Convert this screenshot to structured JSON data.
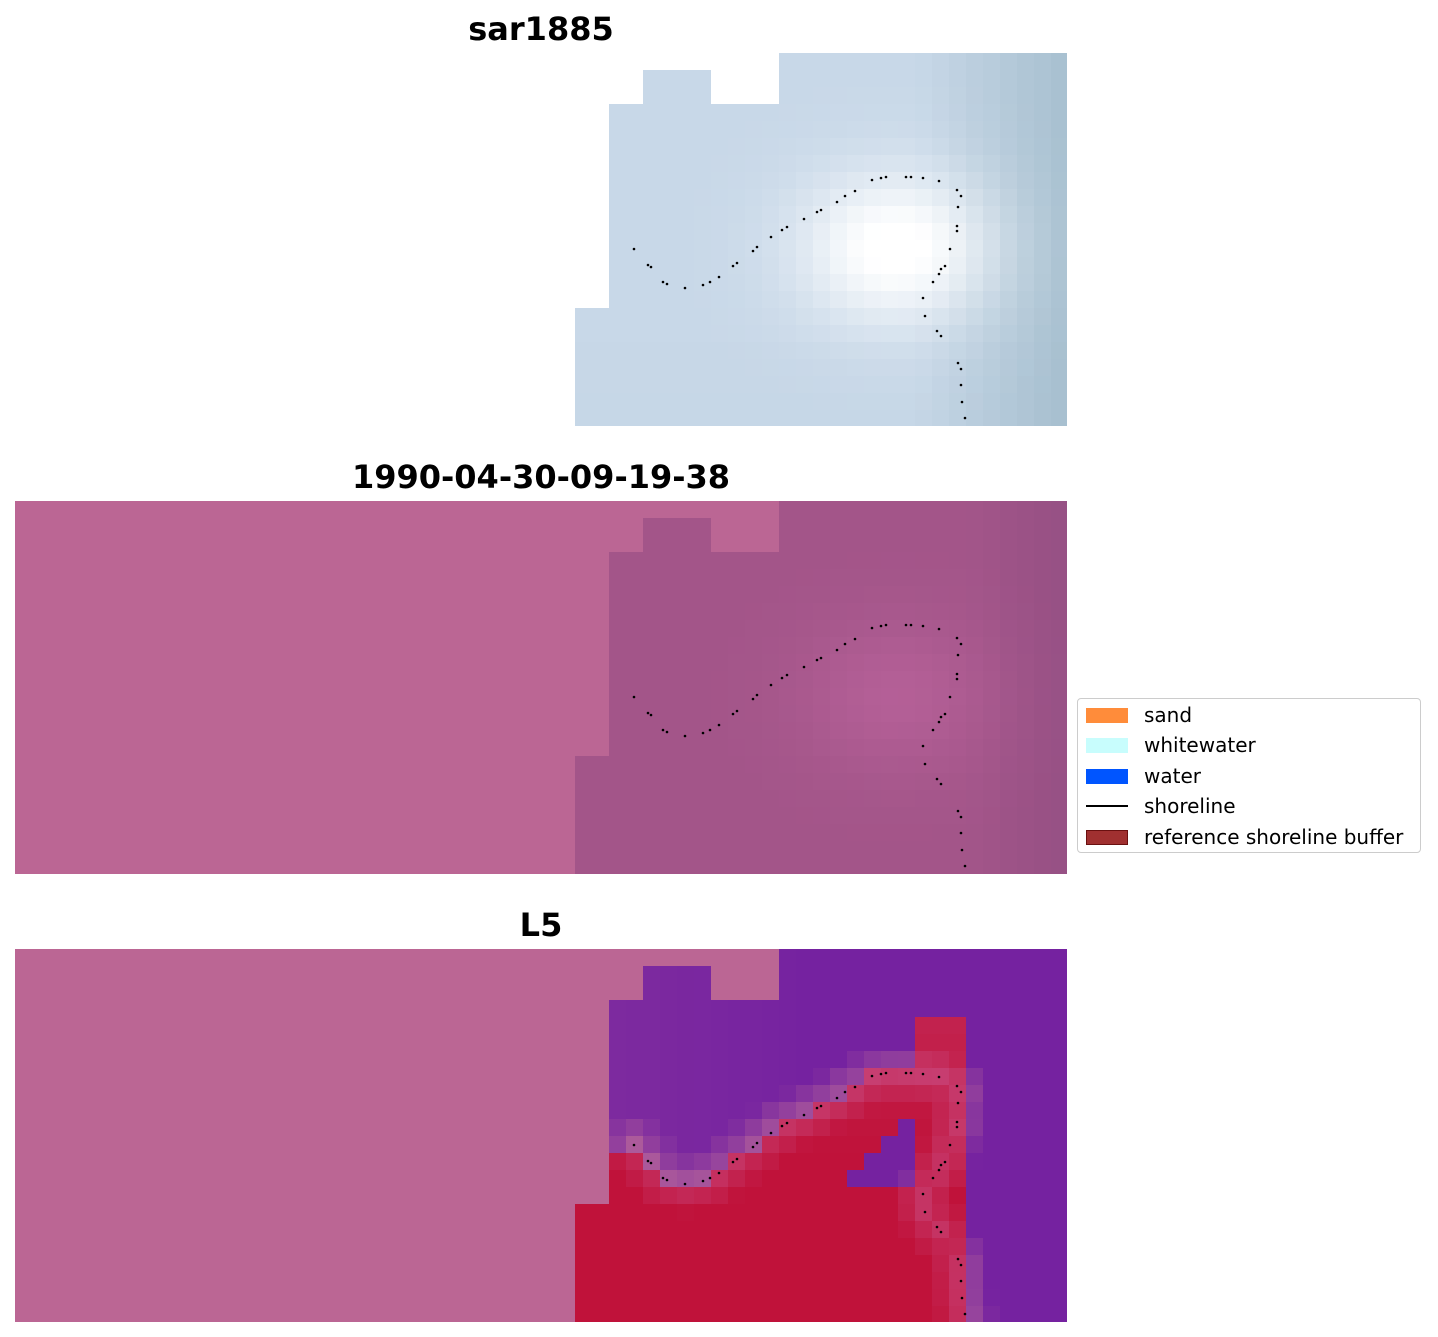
{
  "panels": [
    {
      "title": "sar1885",
      "style": "rgb"
    },
    {
      "title": "1990-04-30-09-19-38",
      "style": "index"
    },
    {
      "title": "L5",
      "style": "classified"
    }
  ],
  "legend": {
    "items": [
      {
        "label": "sand",
        "color": "#ff8c3a",
        "kind": "patch"
      },
      {
        "label": "whitewater",
        "color": "#c8fdfd",
        "kind": "patch"
      },
      {
        "label": "water",
        "color": "#0055ff",
        "kind": "patch"
      },
      {
        "label": "shoreline",
        "color": "#000000",
        "kind": "line"
      },
      {
        "label": "reference shoreline buffer",
        "color": "#a03030",
        "kind": "patch"
      }
    ]
  },
  "colors": {
    "nodata_fill": "#bb6694",
    "rgb_fill": "#c8d8e8",
    "rgb_bright": "#ffffff",
    "rgb_dark": "#a8c0d0",
    "index_fill": "#a35589",
    "index_light": "#b8629a",
    "class_water": "#7522a0",
    "class_sand": "#c0123a",
    "shoreline_points": "#000000"
  }
}
